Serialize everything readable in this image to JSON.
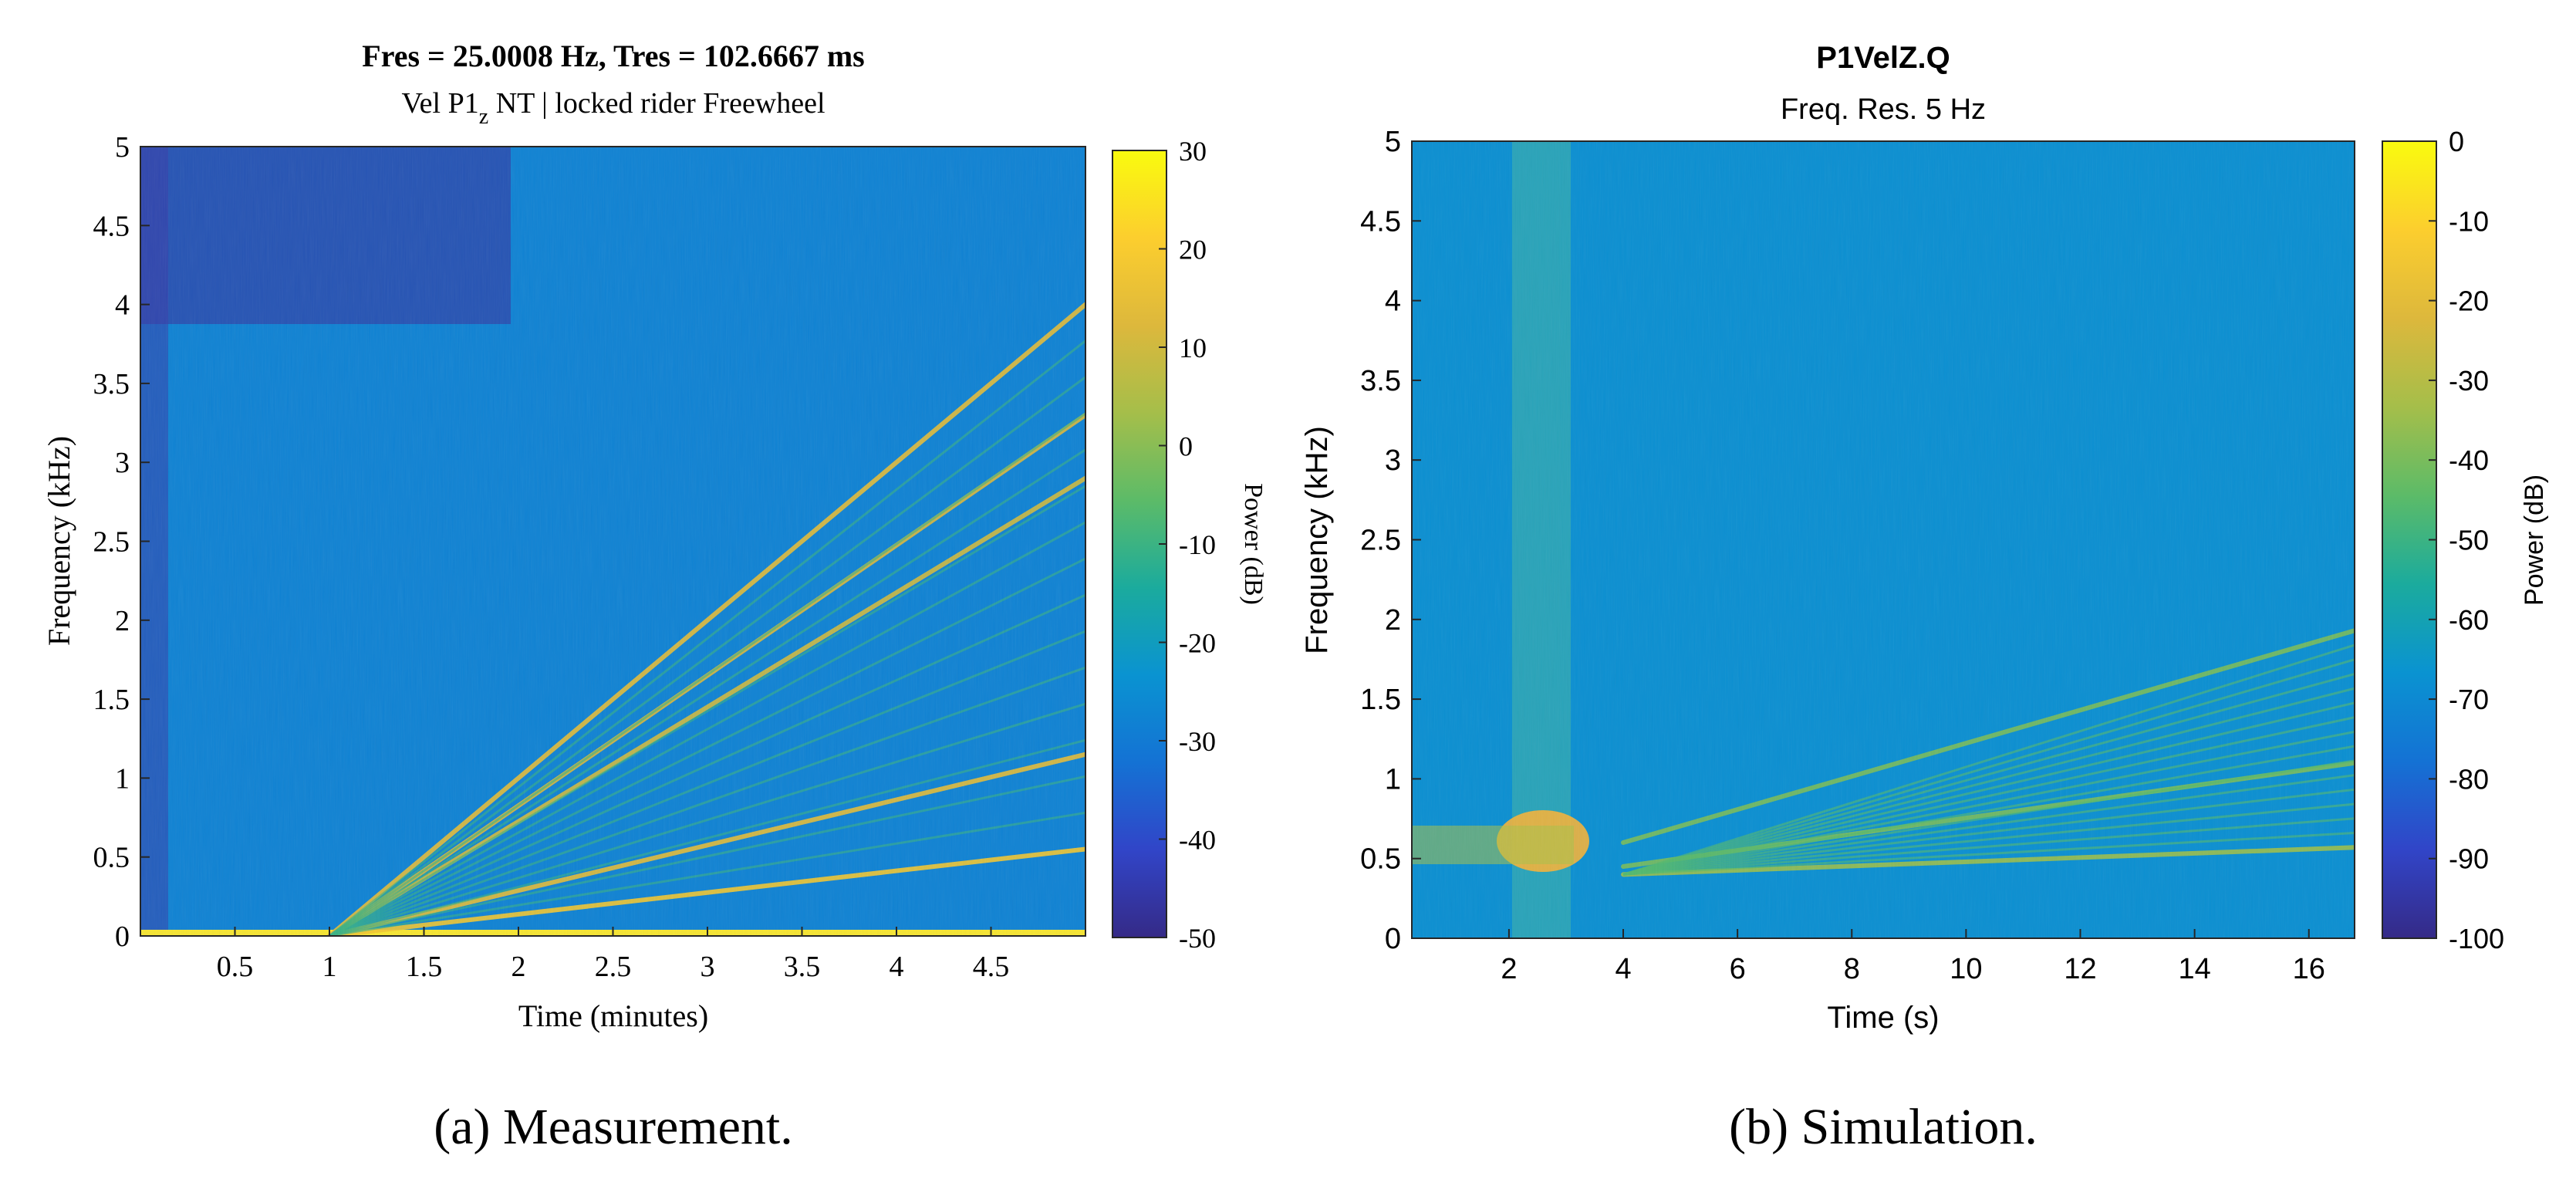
{
  "colors": {
    "axis": "#262626",
    "parula": [
      "#352a87",
      "#3145c8",
      "#1472d4",
      "#0a93d1",
      "#1bab9d",
      "#5cbb68",
      "#a5be4a",
      "#ddb83c",
      "#fcce2e",
      "#f9fb0e"
    ]
  },
  "chart_data": [
    {
      "type": "heatmap",
      "title": "Fres = 25.0008 Hz, Tres = 102.6667 ms",
      "subtitle": {
        "main": "Vel P1",
        "sub": "z",
        "rest": " NT | locked rider Freewheel"
      },
      "xlabel": "Time (minutes)",
      "ylabel": "Frequency (kHz)",
      "colorbar_label": "Power (dB)",
      "xlim": [
        0,
        5
      ],
      "ylim": [
        0,
        5
      ],
      "clim": [
        -50,
        30
      ],
      "xticks": [
        {
          "v": 0.5,
          "label": "0.5"
        },
        {
          "v": 1,
          "label": "1"
        },
        {
          "v": 1.5,
          "label": "1.5"
        },
        {
          "v": 2,
          "label": "2"
        },
        {
          "v": 2.5,
          "label": "2.5"
        },
        {
          "v": 3,
          "label": "3"
        },
        {
          "v": 3.5,
          "label": "3.5"
        },
        {
          "v": 4,
          "label": "4"
        },
        {
          "v": 4.5,
          "label": "4.5"
        }
      ],
      "yticks": [
        {
          "v": 0,
          "label": "0"
        },
        {
          "v": 0.5,
          "label": "0.5"
        },
        {
          "v": 1,
          "label": "1"
        },
        {
          "v": 1.5,
          "label": "1.5"
        },
        {
          "v": 2,
          "label": "2"
        },
        {
          "v": 2.5,
          "label": "2.5"
        },
        {
          "v": 3,
          "label": "3"
        },
        {
          "v": 3.5,
          "label": "3.5"
        },
        {
          "v": 4,
          "label": "4"
        },
        {
          "v": 4.5,
          "label": "4.5"
        },
        {
          "v": 5,
          "label": "5"
        }
      ],
      "cticks": [
        {
          "v": 30,
          "label": "30"
        },
        {
          "v": 20,
          "label": "20"
        },
        {
          "v": 10,
          "label": "10"
        },
        {
          "v": 0,
          "label": "0"
        },
        {
          "v": -10,
          "label": "-10"
        },
        {
          "v": -20,
          "label": "-20"
        },
        {
          "v": -30,
          "label": "-30"
        },
        {
          "v": -40,
          "label": "-40"
        },
        {
          "v": -50,
          "label": "-50"
        }
      ],
      "background_level_db": -28,
      "harmonic_lines": [
        {
          "start": [
            1.0,
            0.0
          ],
          "end": [
            5.0,
            0.55
          ],
          "level_db": 18
        },
        {
          "start": [
            1.0,
            0.0
          ],
          "end": [
            5.0,
            1.15
          ],
          "level_db": 14
        },
        {
          "start": [
            1.0,
            0.0
          ],
          "end": [
            5.0,
            2.9
          ],
          "level_db": 10
        },
        {
          "start": [
            1.0,
            0.0
          ],
          "end": [
            5.0,
            3.3
          ],
          "level_db": 12
        },
        {
          "start": [
            1.0,
            0.0
          ],
          "end": [
            5.0,
            4.0
          ],
          "level_db": 14
        }
      ],
      "caption": {
        "label": "(a)",
        "text": " Measurement."
      }
    },
    {
      "type": "heatmap",
      "title": "P1VelZ.Q",
      "subtitle": "Freq. Res. 5 Hz",
      "xlabel": "Time (s)",
      "ylabel": "Frequency (kHz)",
      "colorbar_label": "Power (dB)",
      "xlim": [
        0.3,
        16.8
      ],
      "ylim": [
        0,
        5
      ],
      "clim": [
        -100,
        0
      ],
      "xticks": [
        {
          "v": 2,
          "label": "2"
        },
        {
          "v": 4,
          "label": "4"
        },
        {
          "v": 6,
          "label": "6"
        },
        {
          "v": 8,
          "label": "8"
        },
        {
          "v": 10,
          "label": "10"
        },
        {
          "v": 12,
          "label": "12"
        },
        {
          "v": 14,
          "label": "14"
        },
        {
          "v": 16,
          "label": "16"
        }
      ],
      "yticks": [
        {
          "v": 0,
          "label": "0"
        },
        {
          "v": 0.5,
          "label": "0.5"
        },
        {
          "v": 1,
          "label": "1"
        },
        {
          "v": 1.5,
          "label": "1.5"
        },
        {
          "v": 2,
          "label": "2"
        },
        {
          "v": 2.5,
          "label": "2.5"
        },
        {
          "v": 3,
          "label": "3"
        },
        {
          "v": 3.5,
          "label": "3.5"
        },
        {
          "v": 4,
          "label": "4"
        },
        {
          "v": 4.5,
          "label": "4.5"
        },
        {
          "v": 5,
          "label": "5"
        }
      ],
      "cticks": [
        {
          "v": 0,
          "label": "0"
        },
        {
          "v": -10,
          "label": "-10"
        },
        {
          "v": -20,
          "label": "-20"
        },
        {
          "v": -30,
          "label": "-30"
        },
        {
          "v": -40,
          "label": "-40"
        },
        {
          "v": -50,
          "label": "-50"
        },
        {
          "v": -60,
          "label": "-60"
        },
        {
          "v": -70,
          "label": "-70"
        },
        {
          "v": -80,
          "label": "-80"
        },
        {
          "v": -90,
          "label": "-90"
        },
        {
          "v": -100,
          "label": "-100"
        }
      ],
      "background_level_db": -68,
      "harmonic_lines": [
        {
          "start": [
            4.0,
            0.4
          ],
          "end": [
            16.8,
            0.57
          ],
          "level_db": -35
        },
        {
          "start": [
            4.0,
            0.45
          ],
          "end": [
            16.8,
            1.1
          ],
          "level_db": -40
        },
        {
          "start": [
            4.0,
            0.6
          ],
          "end": [
            16.8,
            1.93
          ],
          "level_db": -40
        }
      ],
      "caption": {
        "label": "(b)",
        "text": " Simulation."
      }
    }
  ]
}
